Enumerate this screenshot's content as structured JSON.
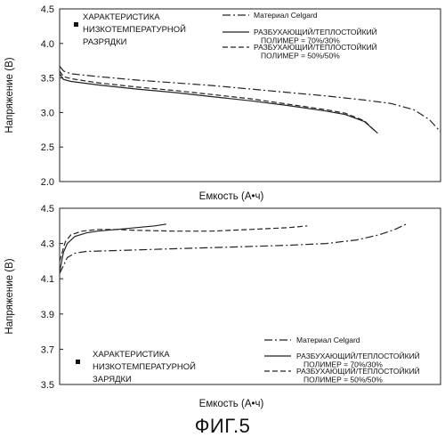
{
  "figure": {
    "caption": "ФИГ.5"
  },
  "chart_data": [
    {
      "type": "line",
      "panel_label": "Характеристика низкотемпературной разрядки",
      "panel_label_lines": [
        "ХАРАКТЕРИСТИКА",
        "НИЗКОТЕМПЕРАТУРНОЙ",
        "РАЗРЯДКИ"
      ],
      "xlabel": "Емкость (А•ч)",
      "ylabel": "Напряжение (В)",
      "ylim": [
        2.0,
        4.5
      ],
      "yticks": [
        "2.0",
        "2.5",
        "3.0",
        "3.5",
        "4.0",
        "4.5"
      ],
      "xlim": [
        0,
        1
      ],
      "xticks": [],
      "grid": false,
      "legend_position": "top-right",
      "series": [
        {
          "name": "Материал Celgard",
          "name_lines": [
            "Материал Celgard"
          ],
          "style": "dashdot",
          "x": [
            0.0,
            0.01,
            0.03,
            0.1,
            0.2,
            0.3,
            0.4,
            0.5,
            0.6,
            0.7,
            0.8,
            0.87,
            0.93,
            0.97,
            1.0
          ],
          "y": [
            3.67,
            3.6,
            3.56,
            3.52,
            3.47,
            3.43,
            3.39,
            3.34,
            3.29,
            3.24,
            3.18,
            3.13,
            3.04,
            2.9,
            2.72
          ]
        },
        {
          "name": "Разбухающий/теплостойкий полимер = 70%/30%",
          "name_lines": [
            "РАЗБУХАЮЩИЙ/ТЕПЛОСТОЙКИЙ",
            "ПОЛИМЕР = 70%/30%"
          ],
          "style": "solid",
          "x": [
            0.0,
            0.01,
            0.03,
            0.1,
            0.2,
            0.3,
            0.4,
            0.5,
            0.6,
            0.7,
            0.75,
            0.8,
            0.835
          ],
          "y": [
            3.56,
            3.48,
            3.45,
            3.4,
            3.34,
            3.29,
            3.23,
            3.17,
            3.1,
            3.02,
            2.97,
            2.87,
            2.7
          ]
        },
        {
          "name": "Разбухающий/теплостойкий полимер = 50%/50%",
          "name_lines": [
            "РАЗБУХАЮЩИЙ/ТЕПЛОСТОЙКИЙ",
            "ПОЛИМЕР = 50%/50%"
          ],
          "style": "dashed",
          "x": [
            0.0,
            0.01,
            0.03,
            0.1,
            0.2,
            0.3,
            0.4,
            0.5,
            0.6,
            0.7,
            0.75,
            0.8,
            0.83
          ],
          "y": [
            3.6,
            3.52,
            3.49,
            3.43,
            3.37,
            3.32,
            3.26,
            3.2,
            3.12,
            3.04,
            2.99,
            2.88,
            2.72
          ]
        }
      ]
    },
    {
      "type": "line",
      "panel_label": "Характеристика низкотемпературной зарядки",
      "panel_label_lines": [
        "ХАРАКТЕРИСТИКА",
        "НИЗКОТЕМПЕРАТУРНОЙ",
        "ЗАРЯДКИ"
      ],
      "xlabel": "Емкость (А•ч)",
      "ylabel": "Напряжение (В)",
      "ylim": [
        3.5,
        4.5
      ],
      "yticks": [
        "3.5",
        "3.7",
        "3.9",
        "4.1",
        "4.3",
        "4.5"
      ],
      "xlim": [
        0,
        1
      ],
      "xticks": [],
      "grid": false,
      "legend_position": "bottom-right",
      "series": [
        {
          "name": "Материал Celgard",
          "name_lines": [
            "Материал Celgard"
          ],
          "style": "dashdot",
          "x": [
            0.0,
            0.02,
            0.04,
            0.07,
            0.15,
            0.3,
            0.45,
            0.6,
            0.7,
            0.78,
            0.84,
            0.88,
            0.91
          ],
          "y": [
            4.13,
            4.22,
            4.245,
            4.255,
            4.26,
            4.27,
            4.28,
            4.29,
            4.3,
            4.32,
            4.35,
            4.38,
            4.41
          ]
        },
        {
          "name": "Разбухающий/теплостойкий полимер = 70%/30%",
          "name_lines": [
            "РАЗБУХАЮЩИЙ/ТЕПЛОСТОЙКИЙ",
            "ПОЛИМЕР = 70%/30%"
          ],
          "style": "solid",
          "x": [
            0.0,
            0.01,
            0.02,
            0.04,
            0.07,
            0.1,
            0.15,
            0.2,
            0.25,
            0.28
          ],
          "y": [
            4.14,
            4.25,
            4.3,
            4.34,
            4.36,
            4.37,
            4.38,
            4.39,
            4.4,
            4.41
          ]
        },
        {
          "name": "Разбухающий/теплостойкий полимер = 50%/50%",
          "name_lines": [
            "РАЗБУХАЮЩИЙ/ТЕПЛОСТОЙКИЙ",
            "ПОЛИМЕР = 50%/50%"
          ],
          "style": "dashed",
          "x": [
            0.0,
            0.015,
            0.03,
            0.06,
            0.1,
            0.15,
            0.2,
            0.3,
            0.4,
            0.5,
            0.6,
            0.65
          ],
          "y": [
            4.2,
            4.31,
            4.35,
            4.37,
            4.38,
            4.38,
            4.375,
            4.37,
            4.37,
            4.38,
            4.39,
            4.4
          ]
        }
      ]
    }
  ]
}
